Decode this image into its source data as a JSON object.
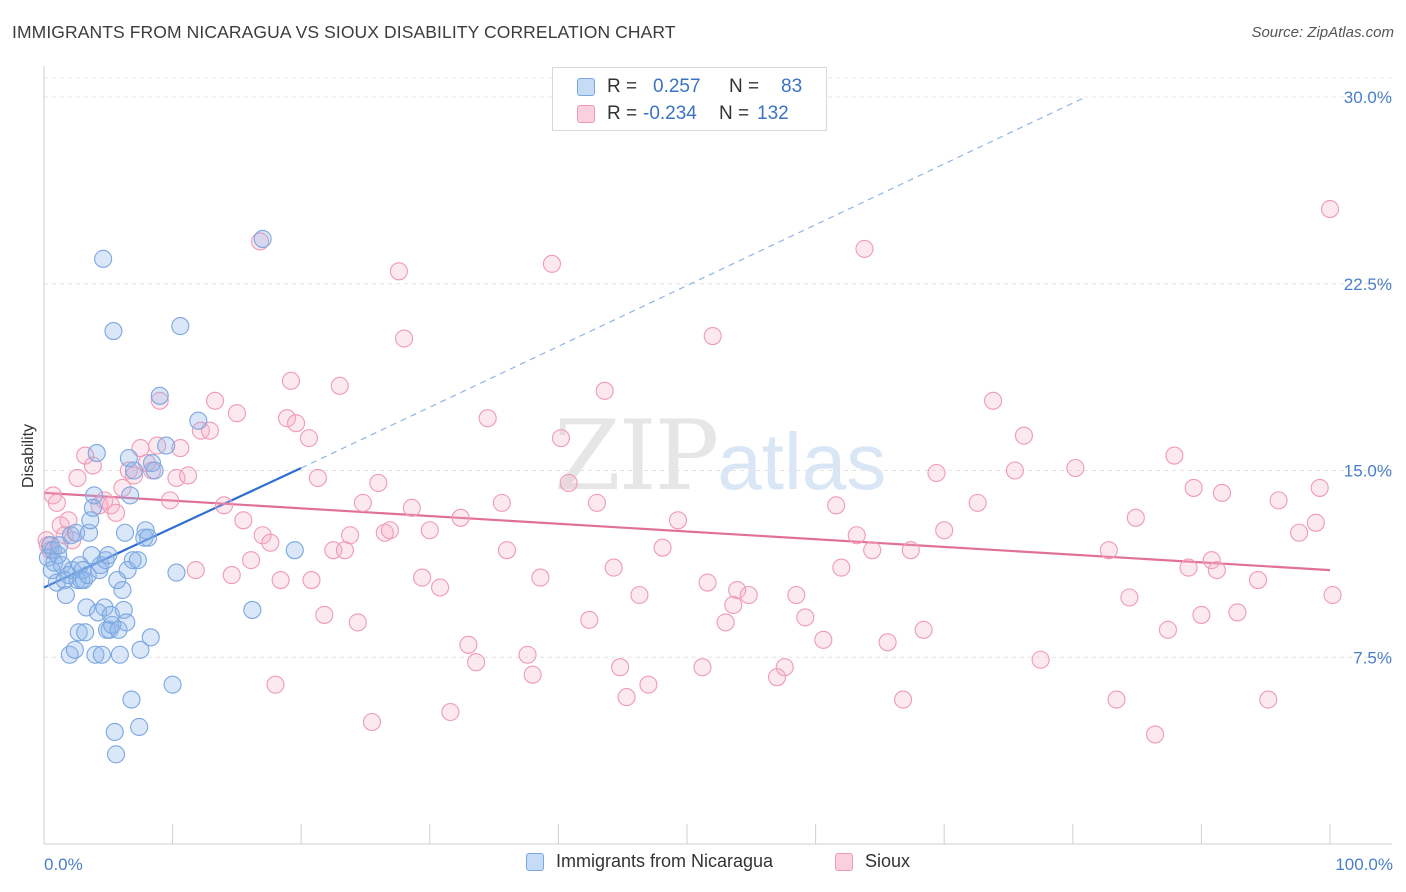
{
  "header": {
    "title": "IMMIGRANTS FROM NICARAGUA VS SIOUX DISABILITY CORRELATION CHART",
    "source": "Source: ZipAtlas.com"
  },
  "legend": {
    "rows": [
      {
        "r_label": "R =",
        "r_value": "0.257",
        "n_label": "N =",
        "n_value": "83",
        "color": "#7ba7e0"
      },
      {
        "r_label": "R =",
        "r_value": "-0.234",
        "n_label": "N =",
        "n_value": "132",
        "color": "#f09ab6"
      }
    ]
  },
  "bottom_legend": {
    "items": [
      {
        "label": "Immigrants from Nicaragua",
        "color": "#7ba7e0"
      },
      {
        "label": "Sioux",
        "color": "#f09ab6"
      }
    ]
  },
  "watermark": {
    "zip": "ZIP",
    "atlas": "atlas"
  },
  "chart_data": {
    "type": "scatter",
    "title": "IMMIGRANTS FROM NICARAGUA VS SIOUX DISABILITY CORRELATION CHART",
    "xlabel": "",
    "ylabel": "Disability",
    "xlim": [
      0,
      100
    ],
    "ylim": [
      0,
      30
    ],
    "x_ticks": [
      "0.0%",
      "100.0%"
    ],
    "y_ticks": [
      {
        "value": 7.5,
        "label": "7.5%"
      },
      {
        "value": 15.0,
        "label": "15.0%"
      },
      {
        "value": 22.5,
        "label": "22.5%"
      },
      {
        "value": 30.0,
        "label": "30.0%"
      }
    ],
    "grid": true,
    "legend_position": "top-center",
    "colors": {
      "nicaragua": "#7ba7e0",
      "sioux": "#f09ab6",
      "nicaragua_line": "#2e6fd1",
      "sioux_line": "#e0709a"
    },
    "series": [
      {
        "name": "Immigrants from Nicaragua",
        "points": [
          [
            0.3,
            11.5
          ],
          [
            0.5,
            12.0
          ],
          [
            0.6,
            11.0
          ],
          [
            0.7,
            11.8
          ],
          [
            0.8,
            11.3
          ],
          [
            1.0,
            10.5
          ],
          [
            1.1,
            11.6
          ],
          [
            1.2,
            12.0
          ],
          [
            1.4,
            11.2
          ],
          [
            1.6,
            10.6
          ],
          [
            1.7,
            10.0
          ],
          [
            1.9,
            10.8
          ],
          [
            2.0,
            7.6
          ],
          [
            2.1,
            12.4
          ],
          [
            2.2,
            11.0
          ],
          [
            2.4,
            7.8
          ],
          [
            2.5,
            12.5
          ],
          [
            2.6,
            10.6
          ],
          [
            2.7,
            8.5
          ],
          [
            2.8,
            11.2
          ],
          [
            2.9,
            10.6
          ],
          [
            3.0,
            11.0
          ],
          [
            3.1,
            10.6
          ],
          [
            3.2,
            8.5
          ],
          [
            3.3,
            9.5
          ],
          [
            3.4,
            10.8
          ],
          [
            3.5,
            12.5
          ],
          [
            3.6,
            13.0
          ],
          [
            3.7,
            11.6
          ],
          [
            3.8,
            13.5
          ],
          [
            3.9,
            14.0
          ],
          [
            4.0,
            7.6
          ],
          [
            4.1,
            15.7
          ],
          [
            4.2,
            9.3
          ],
          [
            4.3,
            11.0
          ],
          [
            4.4,
            11.2
          ],
          [
            4.5,
            7.6
          ],
          [
            4.6,
            23.5
          ],
          [
            4.7,
            9.5
          ],
          [
            4.8,
            11.4
          ],
          [
            4.9,
            8.6
          ],
          [
            5.0,
            11.6
          ],
          [
            5.1,
            8.6
          ],
          [
            5.2,
            9.2
          ],
          [
            5.3,
            8.8
          ],
          [
            5.4,
            20.6
          ],
          [
            5.5,
            4.5
          ],
          [
            5.6,
            3.6
          ],
          [
            5.7,
            10.6
          ],
          [
            5.8,
            8.6
          ],
          [
            5.9,
            7.6
          ],
          [
            6.1,
            10.2
          ],
          [
            6.2,
            9.4
          ],
          [
            6.3,
            12.5
          ],
          [
            6.4,
            8.9
          ],
          [
            6.5,
            11.0
          ],
          [
            6.6,
            15.5
          ],
          [
            6.7,
            14.0
          ],
          [
            6.8,
            5.8
          ],
          [
            6.9,
            11.4
          ],
          [
            7.0,
            15.0
          ],
          [
            7.3,
            11.4
          ],
          [
            7.4,
            4.7
          ],
          [
            7.5,
            7.8
          ],
          [
            7.8,
            12.3
          ],
          [
            7.9,
            12.6
          ],
          [
            8.1,
            12.3
          ],
          [
            8.3,
            8.3
          ],
          [
            8.4,
            15.3
          ],
          [
            8.6,
            15.0
          ],
          [
            9.0,
            18.0
          ],
          [
            9.5,
            16.0
          ],
          [
            10.0,
            6.4
          ],
          [
            10.3,
            10.9
          ],
          [
            10.6,
            20.8
          ],
          [
            12.0,
            17.0
          ],
          [
            16.2,
            9.4
          ],
          [
            17.0,
            24.3
          ],
          [
            19.5,
            11.8
          ]
        ],
        "trend": {
          "x0": 0,
          "y0": 10.3,
          "x1": 20,
          "y1": 15.1,
          "dashed_to_x": 81,
          "dashed_to_y": 30.0
        }
      },
      {
        "name": "Sioux",
        "points": [
          [
            0.2,
            12.2
          ],
          [
            0.3,
            12.0
          ],
          [
            0.5,
            11.8
          ],
          [
            0.7,
            14.0
          ],
          [
            1.0,
            13.7
          ],
          [
            1.3,
            12.8
          ],
          [
            1.6,
            12.4
          ],
          [
            1.9,
            13.0
          ],
          [
            2.2,
            12.2
          ],
          [
            2.6,
            14.7
          ],
          [
            3.2,
            15.6
          ],
          [
            3.8,
            15.2
          ],
          [
            4.3,
            13.6
          ],
          [
            4.7,
            13.8
          ],
          [
            5.2,
            13.6
          ],
          [
            5.6,
            13.3
          ],
          [
            6.1,
            14.3
          ],
          [
            6.6,
            15.0
          ],
          [
            7.0,
            14.8
          ],
          [
            7.5,
            15.9
          ],
          [
            8.0,
            15.3
          ],
          [
            8.4,
            15.0
          ],
          [
            8.8,
            16.0
          ],
          [
            9.0,
            17.8
          ],
          [
            9.8,
            13.8
          ],
          [
            10.3,
            14.7
          ],
          [
            10.6,
            15.9
          ],
          [
            11.2,
            14.8
          ],
          [
            11.8,
            11.0
          ],
          [
            12.2,
            16.6
          ],
          [
            12.9,
            16.6
          ],
          [
            13.3,
            17.8
          ],
          [
            14.0,
            13.6
          ],
          [
            14.6,
            10.8
          ],
          [
            15.0,
            17.3
          ],
          [
            15.5,
            13.0
          ],
          [
            16.1,
            11.4
          ],
          [
            16.8,
            24.2
          ],
          [
            17.0,
            12.4
          ],
          [
            17.6,
            12.1
          ],
          [
            18.0,
            6.4
          ],
          [
            18.4,
            10.6
          ],
          [
            18.9,
            17.1
          ],
          [
            19.2,
            18.6
          ],
          [
            19.6,
            16.9
          ],
          [
            20.6,
            16.3
          ],
          [
            20.8,
            10.6
          ],
          [
            21.3,
            14.7
          ],
          [
            21.8,
            9.2
          ],
          [
            22.5,
            11.8
          ],
          [
            23.0,
            18.4
          ],
          [
            23.4,
            11.8
          ],
          [
            23.8,
            12.4
          ],
          [
            24.4,
            8.9
          ],
          [
            24.8,
            13.7
          ],
          [
            25.5,
            4.9
          ],
          [
            26.0,
            14.5
          ],
          [
            26.5,
            12.5
          ],
          [
            26.9,
            12.6
          ],
          [
            27.6,
            23.0
          ],
          [
            28.0,
            20.3
          ],
          [
            28.6,
            13.5
          ],
          [
            29.4,
            10.7
          ],
          [
            30.0,
            12.6
          ],
          [
            30.8,
            10.3
          ],
          [
            31.6,
            5.3
          ],
          [
            32.4,
            13.1
          ],
          [
            33.0,
            8.0
          ],
          [
            33.6,
            7.3
          ],
          [
            34.5,
            17.1
          ],
          [
            35.6,
            13.7
          ],
          [
            36.0,
            11.8
          ],
          [
            37.6,
            7.6
          ],
          [
            38.0,
            6.8
          ],
          [
            38.6,
            10.7
          ],
          [
            39.5,
            23.3
          ],
          [
            40.2,
            16.3
          ],
          [
            40.8,
            14.5
          ],
          [
            42.4,
            9.0
          ],
          [
            43.0,
            13.7
          ],
          [
            43.6,
            18.2
          ],
          [
            44.3,
            11.1
          ],
          [
            44.8,
            7.1
          ],
          [
            45.3,
            5.9
          ],
          [
            46.3,
            10.0
          ],
          [
            47.0,
            6.4
          ],
          [
            48.1,
            11.9
          ],
          [
            49.3,
            13.0
          ],
          [
            51.2,
            7.1
          ],
          [
            51.6,
            10.5
          ],
          [
            52.0,
            20.4
          ],
          [
            53.0,
            8.9
          ],
          [
            53.6,
            9.6
          ],
          [
            53.9,
            10.2
          ],
          [
            54.8,
            10.0
          ],
          [
            57.0,
            6.7
          ],
          [
            57.6,
            7.1
          ],
          [
            58.5,
            10.0
          ],
          [
            59.2,
            9.1
          ],
          [
            60.6,
            8.2
          ],
          [
            61.6,
            13.6
          ],
          [
            62.0,
            11.1
          ],
          [
            63.2,
            12.4
          ],
          [
            63.8,
            23.9
          ],
          [
            64.4,
            11.8
          ],
          [
            65.6,
            8.1
          ],
          [
            66.8,
            5.8
          ],
          [
            67.4,
            11.8
          ],
          [
            68.4,
            8.6
          ],
          [
            69.4,
            14.9
          ],
          [
            70.0,
            12.6
          ],
          [
            72.6,
            13.7
          ],
          [
            73.8,
            17.8
          ],
          [
            75.5,
            15.0
          ],
          [
            76.2,
            16.4
          ],
          [
            77.5,
            7.4
          ],
          [
            80.2,
            15.1
          ],
          [
            82.8,
            11.8
          ],
          [
            83.4,
            5.8
          ],
          [
            84.4,
            9.9
          ],
          [
            84.9,
            13.1
          ],
          [
            86.4,
            4.4
          ],
          [
            87.4,
            8.6
          ],
          [
            87.9,
            15.6
          ],
          [
            89.0,
            11.1
          ],
          [
            89.4,
            14.3
          ],
          [
            90.0,
            9.2
          ],
          [
            90.8,
            11.4
          ],
          [
            91.2,
            11.0
          ],
          [
            91.6,
            14.1
          ],
          [
            92.8,
            9.3
          ],
          [
            94.4,
            10.6
          ],
          [
            95.2,
            5.8
          ],
          [
            96.0,
            13.8
          ],
          [
            97.6,
            12.5
          ],
          [
            98.9,
            12.9
          ],
          [
            99.2,
            14.3
          ],
          [
            100.0,
            25.5
          ],
          [
            100.2,
            10.0
          ]
        ],
        "trend": {
          "x0": 0,
          "y0": 14.1,
          "x1": 100,
          "y1": 11.0
        }
      }
    ]
  }
}
